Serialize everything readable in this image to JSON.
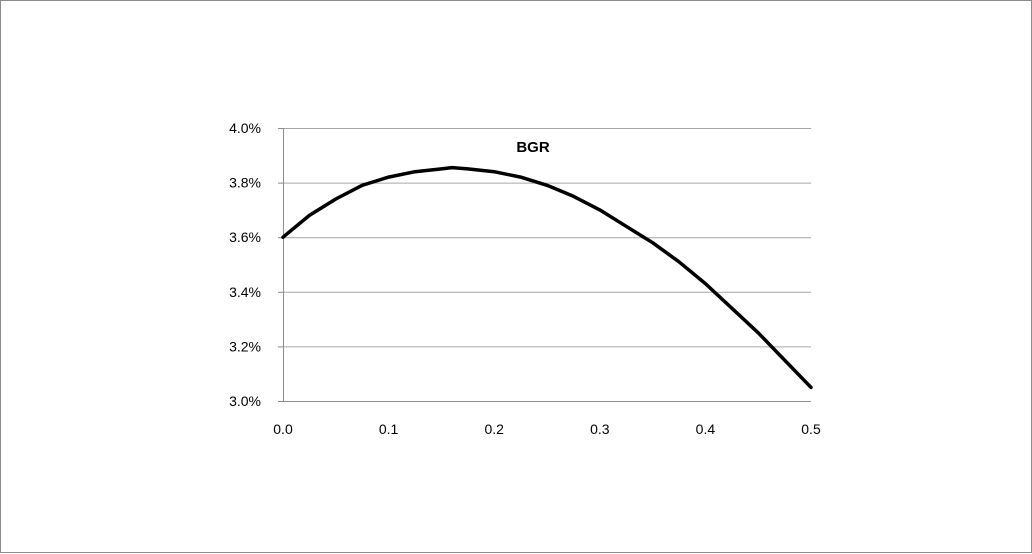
{
  "chart_data": {
    "type": "line",
    "title": "BGR",
    "xlabel": "",
    "ylabel": "",
    "xlim": [
      0.0,
      0.5
    ],
    "ylim": [
      3.0,
      4.0
    ],
    "x_ticks": [
      0.0,
      0.1,
      0.2,
      0.3,
      0.4,
      0.5
    ],
    "x_tick_labels": [
      "0.0",
      "0.1",
      "0.2",
      "0.3",
      "0.4",
      "0.5"
    ],
    "y_ticks": [
      3.0,
      3.2,
      3.4,
      3.6,
      3.8,
      4.0
    ],
    "y_tick_labels": [
      "3.0%",
      "3.2%",
      "3.4%",
      "3.6%",
      "3.8%",
      "4.0%"
    ],
    "grid": "horizontal",
    "legend": "none",
    "line_color": "#000000",
    "grid_color": "#a6a6a6",
    "axis_color": "#8c8c8c",
    "series": [
      {
        "x": [
          0.0,
          0.025,
          0.05,
          0.075,
          0.1,
          0.125,
          0.15,
          0.16,
          0.175,
          0.2,
          0.225,
          0.25,
          0.275,
          0.3,
          0.325,
          0.35,
          0.375,
          0.4,
          0.425,
          0.45,
          0.475,
          0.5
        ],
        "values": [
          3.6,
          3.68,
          3.74,
          3.79,
          3.82,
          3.84,
          3.85,
          3.855,
          3.85,
          3.84,
          3.82,
          3.79,
          3.75,
          3.7,
          3.64,
          3.58,
          3.51,
          3.43,
          3.34,
          3.25,
          3.15,
          3.05
        ]
      }
    ]
  }
}
